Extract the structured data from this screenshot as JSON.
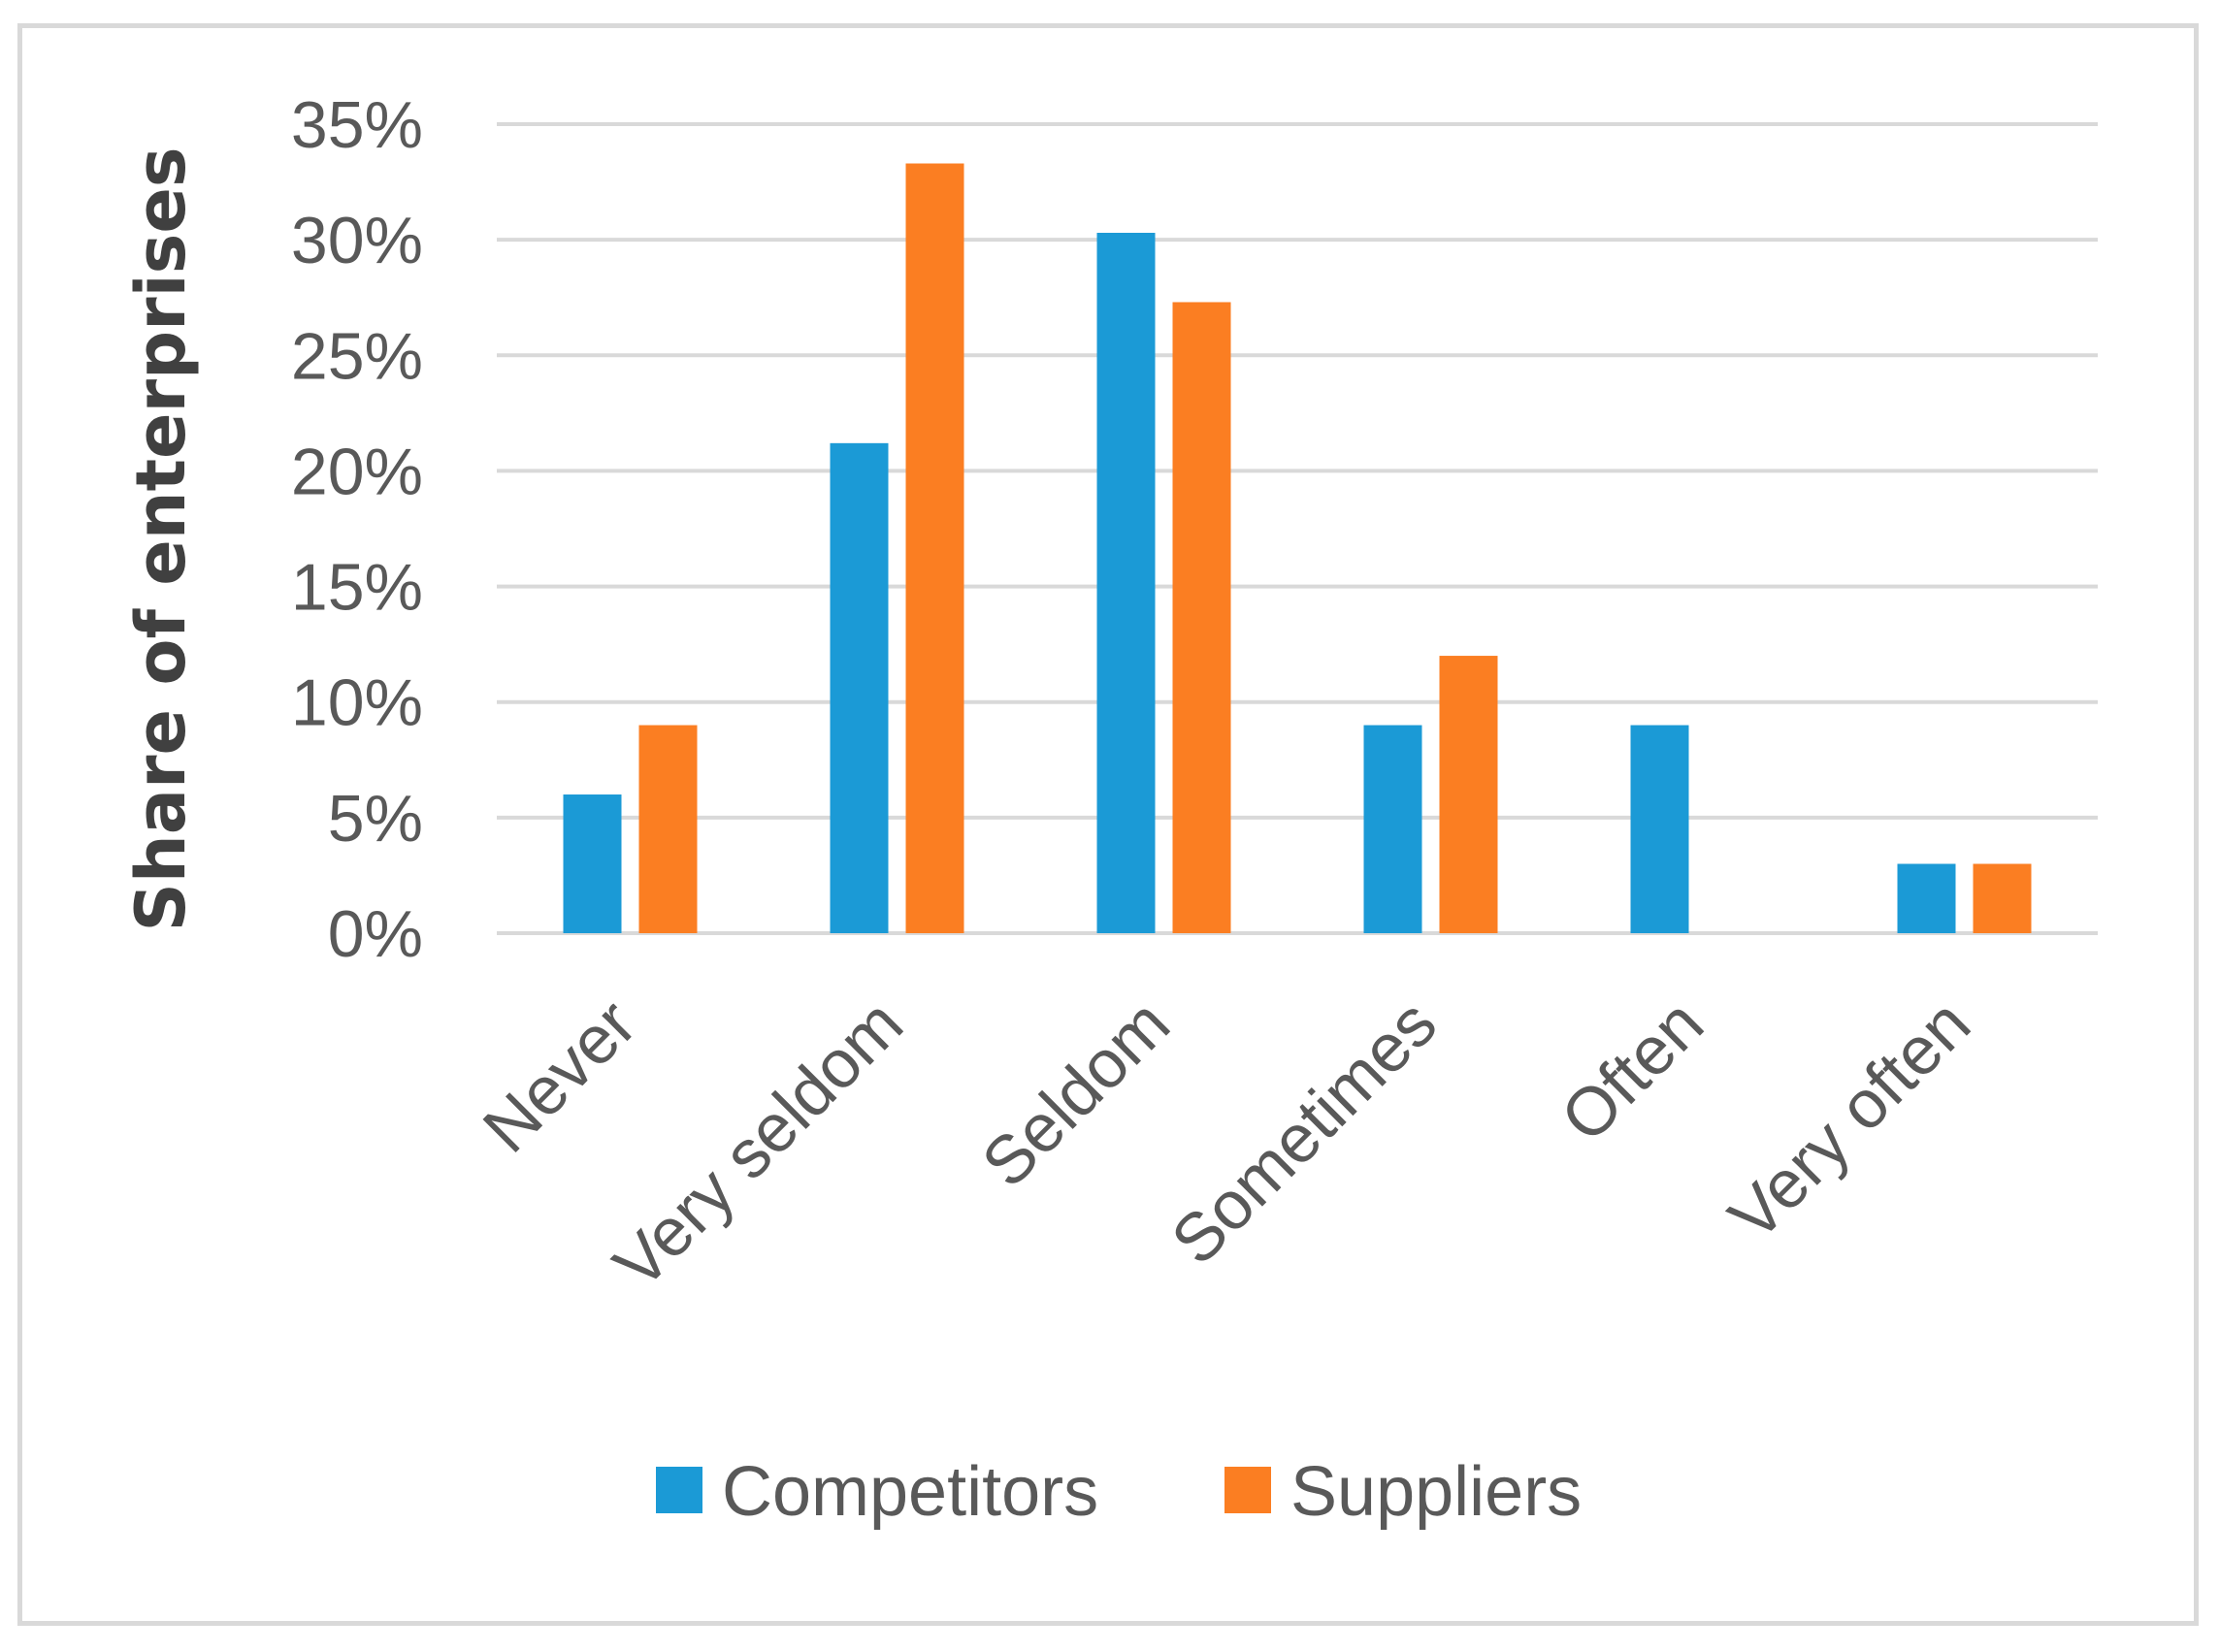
{
  "chart_data": {
    "type": "bar",
    "title": "",
    "xlabel": "",
    "ylabel": "Share of enterprises",
    "categories": [
      "Never",
      "Very seldom",
      "Seldom",
      "Sometimes",
      "Often",
      "Very often"
    ],
    "series": [
      {
        "name": "Competitors",
        "color": "#1b9ad6",
        "values": [
          6,
          21.2,
          30.3,
          9,
          9,
          3
        ]
      },
      {
        "name": "Suppliers",
        "color": "#fb7e22",
        "values": [
          9,
          33.3,
          27.3,
          12,
          0,
          3
        ]
      }
    ],
    "ylim": [
      0,
      35
    ],
    "ytick_values": [
      0,
      5,
      10,
      15,
      20,
      25,
      30,
      35
    ],
    "ytick_labels": [
      "0%",
      "5%",
      "10%",
      "15%",
      "20%",
      "25%",
      "30%",
      "35%"
    ],
    "grid": true,
    "gridline_color": "#d9d9d9",
    "legend_position": "bottom"
  }
}
